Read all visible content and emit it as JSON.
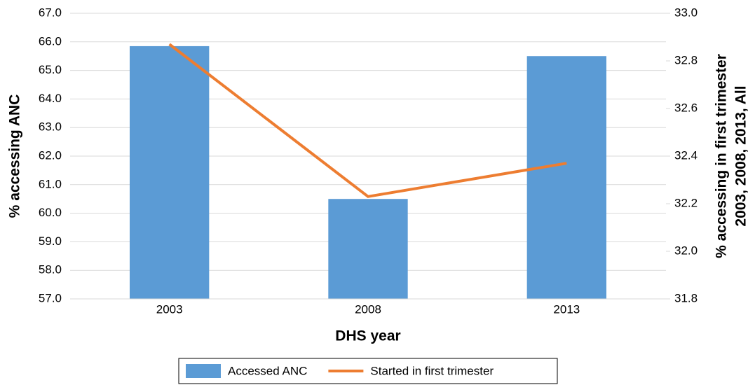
{
  "chart_data": {
    "type": "bar_line",
    "x_label": "DHS year",
    "y_label": "% accessing ANC",
    "y2_label": [
      "% accessing in first trimester",
      "2003, 2008, 2013, All"
    ],
    "categories": [
      "2003",
      "2008",
      "2013"
    ],
    "series": [
      {
        "name": "Accessed ANC",
        "type": "bar",
        "color": "#5b9bd5",
        "axis": "y",
        "values": [
          65.85,
          60.5,
          65.5
        ]
      },
      {
        "name": "Started in first trimester",
        "type": "line",
        "color": "#ed7d31",
        "axis": "y2",
        "values": [
          32.87,
          32.23,
          32.37
        ]
      }
    ],
    "ylim": [
      57,
      67
    ],
    "yticks": [
      {
        "value": 57,
        "label": "57.0"
      },
      {
        "value": 58,
        "label": "58.0"
      },
      {
        "value": 59,
        "label": "59.0"
      },
      {
        "value": 60,
        "label": "60.0"
      },
      {
        "value": 61,
        "label": "61.0"
      },
      {
        "value": 62,
        "label": "62.0"
      },
      {
        "value": 63,
        "label": "63.0"
      },
      {
        "value": 64,
        "label": "64.0"
      },
      {
        "value": 65,
        "label": "65.0"
      },
      {
        "value": 66,
        "label": "66.0"
      },
      {
        "value": 67,
        "label": "67.0"
      }
    ],
    "y2lim": [
      31.8,
      33
    ],
    "y2ticks": [
      {
        "value": 31.8,
        "label": "31.8"
      },
      {
        "value": 32,
        "label": "32.0"
      },
      {
        "value": 32.2,
        "label": "32.2"
      },
      {
        "value": 32.4,
        "label": "32.4"
      },
      {
        "value": 32.6,
        "label": "32.6"
      },
      {
        "value": 32.8,
        "label": "32.8"
      },
      {
        "value": 33,
        "label": "33.0"
      }
    ],
    "grid": true,
    "legend": "bottom"
  }
}
